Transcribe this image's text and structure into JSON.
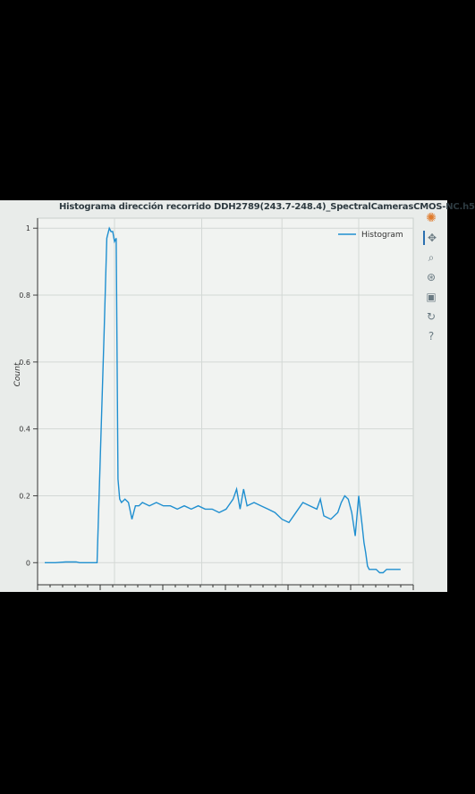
{
  "chart_data": {
    "type": "line",
    "title": "Histograma dirección recorrido DDH2789(243.7-248.4)_SpectralCamerasCMOS-NC.h5",
    "xlabel": "",
    "ylabel": "Count",
    "ylim": [
      -0.05,
      1.03
    ],
    "xlim": [
      0,
      100
    ],
    "yticks": [
      0,
      0.2,
      0.4,
      0.6,
      0.8,
      1
    ],
    "ytick_labels": [
      "0",
      "0.2",
      "0.4",
      "0.6",
      "0.8",
      "1"
    ],
    "grid": true,
    "legend": "top-right",
    "series": [
      {
        "name": "Histogram",
        "color": "#1f8fd0",
        "x": [
          0,
          3,
          6,
          9,
          10,
          15,
          17,
          17.8,
          18.5,
          19,
          19.5,
          20,
          20.5,
          21,
          21.5,
          22,
          23,
          24,
          25,
          26,
          27,
          28,
          30,
          32,
          34,
          36,
          38,
          40,
          42,
          44,
          46,
          48,
          50,
          52,
          54,
          55,
          56,
          57,
          58,
          60,
          62,
          64,
          66,
          68,
          70,
          72,
          74,
          76,
          78,
          79,
          80,
          82,
          84,
          85,
          86,
          87,
          88,
          89,
          90,
          91,
          91.5,
          92,
          92.5,
          93,
          93.5,
          94,
          95,
          96,
          97,
          98,
          99,
          100,
          102
        ],
        "y": [
          0,
          0,
          0.002,
          0.002,
          0,
          0,
          0.68,
          0.97,
          1.0,
          0.99,
          0.99,
          0.96,
          0.97,
          0.25,
          0.19,
          0.18,
          0.19,
          0.18,
          0.13,
          0.17,
          0.17,
          0.18,
          0.17,
          0.18,
          0.17,
          0.17,
          0.16,
          0.17,
          0.16,
          0.17,
          0.16,
          0.16,
          0.15,
          0.16,
          0.19,
          0.22,
          0.16,
          0.22,
          0.17,
          0.18,
          0.17,
          0.16,
          0.15,
          0.13,
          0.12,
          0.15,
          0.18,
          0.17,
          0.16,
          0.19,
          0.14,
          0.13,
          0.15,
          0.18,
          0.2,
          0.19,
          0.15,
          0.08,
          0.2,
          0.11,
          0.06,
          0.03,
          -0.01,
          -0.02,
          -0.02,
          -0.02,
          -0.02,
          -0.03,
          -0.03,
          -0.02,
          -0.02,
          -0.02,
          -0.02
        ]
      }
    ]
  },
  "toolbar": {
    "logo_icon": "bokeh-logo-icon",
    "tools": [
      "pan-icon",
      "box-zoom-icon",
      "wheel-zoom-icon",
      "save-icon",
      "reset-icon",
      "help-icon"
    ]
  }
}
